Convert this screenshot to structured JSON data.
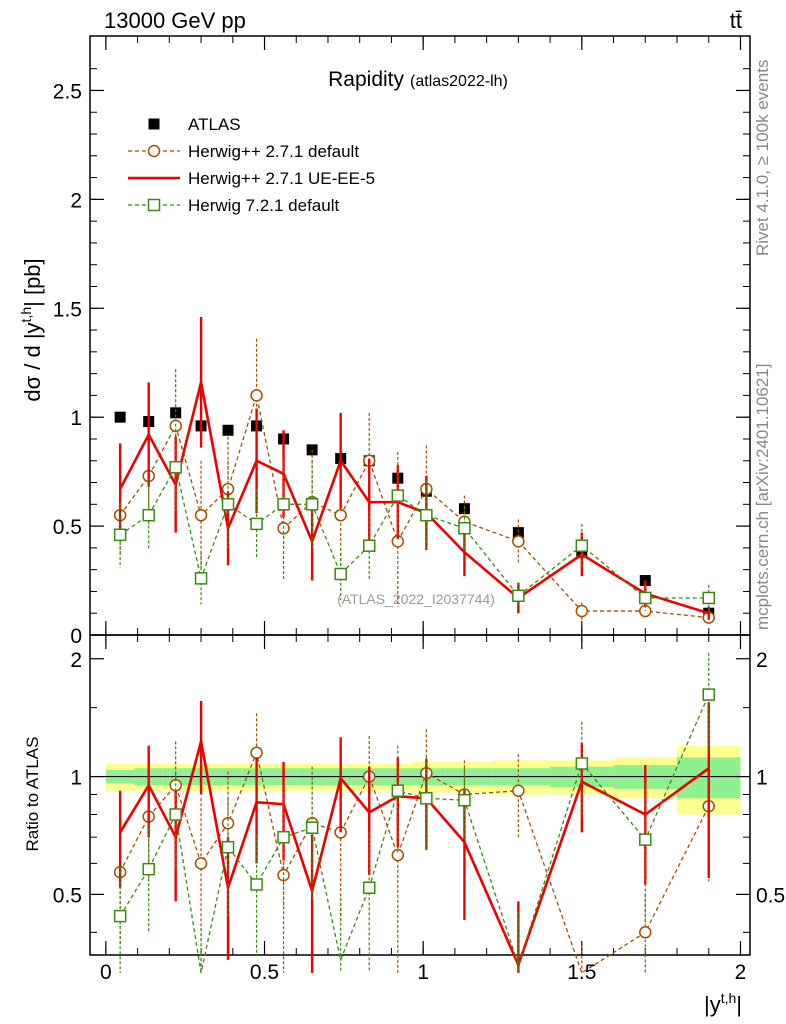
{
  "header": {
    "left": "13000 GeV pp",
    "right": "tt̄"
  },
  "side_labels": {
    "top": "Rivet 4.1.0, ≥ 100k events",
    "bottom": "mcplots.cern.ch [arXiv:2401.10621]"
  },
  "chart_data": {
    "type": "line",
    "title": "Rapidity",
    "subtitle": "(atlas2022-lh)",
    "watermark": "(ATLAS_2022_I2037744)",
    "ylabel": "dσ / d |y^{t,h}| [pb]",
    "ylabel_parts": {
      "main": "dσ / d |y",
      "sup": "t,h",
      "tail": "| [pb]"
    },
    "ratio_ylabel": "Ratio to ATLAS",
    "xlabel": "|y^{t,h}|",
    "xlabel_parts": {
      "main": "|y",
      "sup": "t,h",
      "tail": "|"
    },
    "xlim": [
      -0.05,
      2.03
    ],
    "ylim": [
      0,
      2.75
    ],
    "ratio_ylim": [
      0.35,
      2.3
    ],
    "x_ticks": [
      "0",
      "0.5",
      "1",
      "1.5",
      "2"
    ],
    "y_ticks": [
      "0",
      "0.5",
      "1",
      "1.5",
      "2",
      "2.5"
    ],
    "ratio_y_ticks": [
      "0.5",
      "1",
      "2"
    ],
    "x": [
      0.045,
      0.135,
      0.22,
      0.3,
      0.385,
      0.475,
      0.56,
      0.65,
      0.74,
      0.83,
      0.92,
      1.01,
      1.13,
      1.3,
      1.5,
      1.7,
      1.9
    ],
    "series": [
      {
        "name": "ATLAS",
        "style": "data",
        "color": "#000000",
        "values": [
          1.0,
          0.98,
          1.02,
          0.96,
          0.94,
          0.96,
          0.9,
          0.85,
          0.81,
          0.8,
          0.72,
          0.66,
          0.58,
          0.47,
          0.38,
          0.25,
          0.1
        ]
      },
      {
        "name": "Herwig++ 2.7.1 default",
        "style": "circle-dashed",
        "color": "#a05000",
        "values": [
          0.55,
          0.73,
          0.96,
          0.55,
          0.67,
          1.1,
          0.49,
          0.61,
          0.55,
          0.8,
          0.43,
          0.67,
          0.52,
          0.43,
          0.11,
          0.11,
          0.08
        ],
        "errors": [
          0.18,
          0.22,
          0.26,
          0.25,
          0.24,
          0.26,
          0.24,
          0.24,
          0.24,
          0.22,
          0.3,
          0.2,
          0.12,
          0.1,
          0.04,
          0.03,
          0.02
        ],
        "ratio": [
          0.57,
          0.79,
          0.95,
          0.6,
          0.76,
          1.15,
          0.56,
          0.76,
          0.72,
          1.0,
          0.63,
          1.02,
          0.9,
          0.92,
          0.27,
          0.4,
          0.84
        ],
        "ratio_errors": [
          0.2,
          0.25,
          0.28,
          0.28,
          0.27,
          0.3,
          0.28,
          0.3,
          0.3,
          0.27,
          0.38,
          0.3,
          0.2,
          0.22,
          0.1,
          0.1,
          0.3
        ]
      },
      {
        "name": "Herwig++ 2.7.1 UE-EE-5",
        "style": "solid",
        "color": "#ee0000",
        "values": [
          0.67,
          0.92,
          0.69,
          1.16,
          0.49,
          0.8,
          0.74,
          0.43,
          0.8,
          0.61,
          0.61,
          0.56,
          0.38,
          0.17,
          0.37,
          0.19,
          0.1
        ],
        "errors": [
          0.21,
          0.24,
          0.22,
          0.3,
          0.17,
          0.24,
          0.2,
          0.18,
          0.22,
          0.2,
          0.17,
          0.17,
          0.11,
          0.07,
          0.1,
          0.06,
          0.03
        ],
        "ratio": [
          0.72,
          0.95,
          0.7,
          1.23,
          0.52,
          0.86,
          0.85,
          0.51,
          0.99,
          0.81,
          0.89,
          0.88,
          0.68,
          0.33,
          0.97,
          0.8,
          1.05
        ],
        "ratio_errors": [
          0.2,
          0.25,
          0.22,
          0.33,
          0.18,
          0.26,
          0.24,
          0.2,
          0.27,
          0.25,
          0.23,
          0.23,
          0.25,
          0.15,
          0.25,
          0.27,
          0.5
        ]
      },
      {
        "name": "Herwig 7.2.1 default",
        "style": "square-dashed",
        "color": "#3a8a10",
        "values": [
          0.46,
          0.55,
          0.77,
          0.26,
          0.6,
          0.51,
          0.6,
          0.6,
          0.28,
          0.41,
          0.64,
          0.55,
          0.49,
          0.18,
          0.41,
          0.17,
          0.17
        ],
        "errors": [
          0.15,
          0.16,
          0.2,
          0.12,
          0.2,
          0.16,
          0.2,
          0.2,
          0.12,
          0.16,
          0.2,
          0.16,
          0.1,
          0.06,
          0.1,
          0.06,
          0.06
        ],
        "ratio": [
          0.44,
          0.58,
          0.8,
          0.26,
          0.66,
          0.53,
          0.7,
          0.74,
          0.34,
          0.52,
          0.92,
          0.88,
          0.87,
          0.33,
          1.08,
          0.69,
          1.62
        ],
        "ratio_errors": [
          0.15,
          0.18,
          0.22,
          0.15,
          0.22,
          0.18,
          0.24,
          0.26,
          0.15,
          0.2,
          0.28,
          0.24,
          0.18,
          0.12,
          0.3,
          0.27,
          0.45
        ]
      }
    ],
    "ratio_band": {
      "inner": [
        0.04,
        0.05,
        0.05,
        0.05,
        0.05,
        0.05,
        0.05,
        0.05,
        0.05,
        0.05,
        0.05,
        0.05,
        0.05,
        0.05,
        0.06,
        0.07,
        0.12
      ],
      "outer": [
        0.08,
        0.08,
        0.08,
        0.08,
        0.08,
        0.08,
        0.08,
        0.08,
        0.08,
        0.08,
        0.08,
        0.09,
        0.09,
        0.1,
        0.1,
        0.12,
        0.2
      ]
    },
    "legend_position": "top-left"
  },
  "colors": {
    "band_inner": "#8ff08f",
    "band_outer": "#ffff90"
  }
}
